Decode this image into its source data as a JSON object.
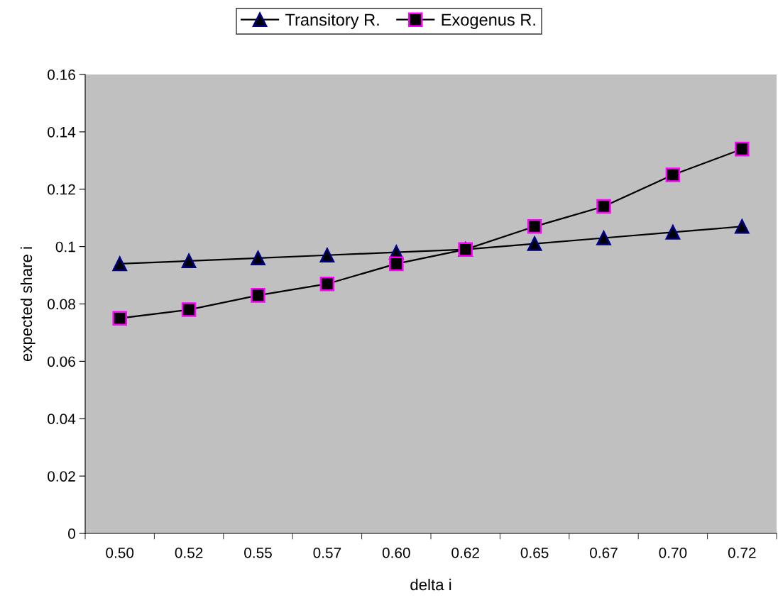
{
  "chart_data": {
    "type": "line",
    "xlabel": "delta i",
    "ylabel": "expected share i",
    "categories": [
      "0.50",
      "0.52",
      "0.55",
      "0.57",
      "0.60",
      "0.62",
      "0.65",
      "0.67",
      "0.70",
      "0.72"
    ],
    "series": [
      {
        "name": "Transitory R.",
        "color": "#000000",
        "marker": "triangle",
        "values": [
          0.094,
          0.095,
          0.096,
          0.097,
          0.098,
          0.099,
          0.101,
          0.103,
          0.105,
          0.107
        ]
      },
      {
        "name": "Exogenus R.",
        "color": "#000000",
        "marker": "square",
        "values": [
          0.075,
          0.078,
          0.083,
          0.087,
          0.094,
          0.099,
          0.107,
          0.114,
          0.125,
          0.134
        ]
      }
    ],
    "ylim": [
      0,
      0.16
    ],
    "yticks": [
      0,
      0.02,
      0.04,
      0.06,
      0.08,
      0.1,
      0.12,
      0.14,
      0.16
    ],
    "grid": false,
    "legend": "top",
    "line_style": "solid"
  }
}
